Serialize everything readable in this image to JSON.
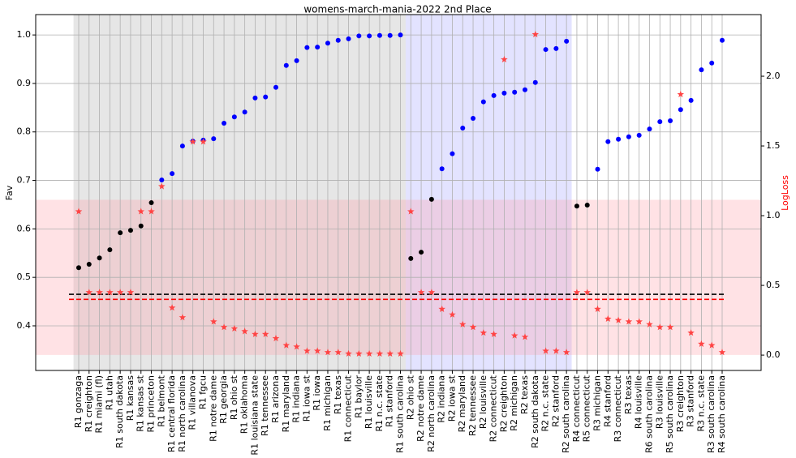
{
  "chart_data": {
    "type": "scatter",
    "title": "womens-march-mania-2022 2nd Place",
    "y_label": "Fav",
    "y2_label": "LogLoss",
    "y2_label_color": "#ff0000",
    "categories": [
      "R1 gonzaga",
      "R1 creighton",
      "R1 miami (fl)",
      "R1 utah",
      "R1 south dakota",
      "R1 kansas",
      "R1 kansas st",
      "R1 princeton",
      "R1 belmont",
      "R1 central florida",
      "R1 north carolina",
      "R1 villanova",
      "R1 fgcu",
      "R1 notre dame",
      "R1 georgia",
      "R1 ohio st",
      "R1 oklahoma",
      "R1 louisiana state",
      "R1 tennessee",
      "R1 arizona",
      "R1 maryland",
      "R1 indiana",
      "R1 iowa st",
      "R1 iowa",
      "R1 michigan",
      "R1 texas",
      "R1 connecticut",
      "R1 baylor",
      "R1 louisville",
      "R1 n.c. state",
      "R1 stanford",
      "R1 south carolina",
      "R2 ohio st",
      "R2 notre dame",
      "R2 north carolina",
      "R2 indiana",
      "R2 iowa st",
      "R2 maryland",
      "R2 tennessee",
      "R2 louisville",
      "R2 connecticut",
      "R2 creighton",
      "R2 michigan",
      "R2 texas",
      "R2 south dakota",
      "R2 n.c. state",
      "R2 stanford",
      "R2 south carolina",
      "R4 connecticut",
      "R5 connecticut",
      "R3 michigan",
      "R4 stanford",
      "R3 connecticut",
      "R3 texas",
      "R4 louisville",
      "R6 south carolina",
      "R3 louisville",
      "R5 south carolina",
      "R3 creighton",
      "R3 stanford",
      "R3 n.c. state",
      "R3 south carolina",
      "R4 south carolina"
    ],
    "series": [
      {
        "name": "Fav",
        "marker": "dot",
        "colors": [
          "#000000",
          "#000000",
          "#000000",
          "#000000",
          "#000000",
          "#000000",
          "#000000",
          "#000000",
          "#0000ff",
          "#0000ff",
          "#0000ff",
          "#0000ff",
          "#0000ff",
          "#0000ff",
          "#0000ff",
          "#0000ff",
          "#0000ff",
          "#0000ff",
          "#0000ff",
          "#0000ff",
          "#0000ff",
          "#0000ff",
          "#0000ff",
          "#0000ff",
          "#0000ff",
          "#0000ff",
          "#0000ff",
          "#0000ff",
          "#0000ff",
          "#0000ff",
          "#0000ff",
          "#0000ff",
          "#000000",
          "#000000",
          "#000000",
          "#0000ff",
          "#0000ff",
          "#0000ff",
          "#0000ff",
          "#0000ff",
          "#0000ff",
          "#0000ff",
          "#0000ff",
          "#0000ff",
          "#0000ff",
          "#0000ff",
          "#0000ff",
          "#0000ff",
          "#000000",
          "#000000",
          "#0000ff",
          "#0000ff",
          "#0000ff",
          "#0000ff",
          "#0000ff",
          "#0000ff",
          "#0000ff",
          "#0000ff",
          "#0000ff",
          "#0000ff",
          "#0000ff",
          "#0000ff",
          "#0000ff"
        ],
        "values": [
          0.52,
          0.527,
          0.54,
          0.557,
          0.592,
          0.597,
          0.606,
          0.654,
          0.701,
          0.714,
          0.771,
          0.781,
          0.783,
          0.786,
          0.818,
          0.831,
          0.841,
          0.87,
          0.872,
          0.892,
          0.937,
          0.947,
          0.974,
          0.975,
          0.983,
          0.989,
          0.992,
          0.998,
          0.998,
          0.999,
          0.999,
          1.0,
          0.539,
          0.552,
          0.661,
          0.724,
          0.755,
          0.808,
          0.828,
          0.862,
          0.875,
          0.88,
          0.882,
          0.887,
          0.902,
          0.97,
          0.972,
          0.987,
          0.647,
          0.649,
          0.723,
          0.78,
          0.785,
          0.79,
          0.793,
          0.806,
          0.821,
          0.823,
          0.846,
          0.865,
          0.928,
          0.942,
          0.989
        ]
      },
      {
        "name": "LogLoss",
        "marker": "star",
        "color": "#ff4444",
        "axis": "y2",
        "values": [
          1.03,
          0.45,
          0.45,
          0.45,
          0.45,
          0.45,
          1.03,
          1.03,
          1.21,
          0.34,
          0.27,
          1.53,
          1.53,
          0.24,
          0.2,
          0.19,
          0.17,
          0.15,
          0.15,
          0.12,
          0.07,
          0.06,
          0.03,
          0.03,
          0.02,
          0.02,
          0.01,
          0.01,
          0.01,
          0.01,
          0.01,
          0.01,
          1.03,
          0.45,
          0.45,
          0.33,
          0.29,
          0.22,
          0.2,
          0.16,
          0.15,
          2.12,
          0.14,
          0.13,
          2.3,
          0.03,
          0.03,
          0.02,
          0.45,
          0.45,
          0.33,
          0.26,
          0.25,
          0.24,
          0.24,
          0.22,
          0.2,
          0.2,
          1.87,
          0.16,
          0.08,
          0.07,
          0.02
        ]
      }
    ],
    "hlines": [
      {
        "value": 0.465,
        "color": "#000000"
      },
      {
        "value": 0.4,
        "color": "#ff0000",
        "axis": "y2"
      }
    ],
    "hspan": {
      "from": 0.34,
      "to": 0.66,
      "color": "rgba(255,150,160,0.28)"
    },
    "vspans": [
      {
        "from": 0,
        "to": 31,
        "color": "rgba(128,128,128,0.2)"
      },
      {
        "from": 32,
        "to": 47,
        "color": "rgba(90,90,255,0.17)"
      }
    ],
    "ylim": [
      0.308,
      1.042
    ],
    "yticks": [
      0.4,
      0.5,
      0.6,
      0.7,
      0.8,
      0.9,
      {
        "value": 1,
        "label": "1.0"
      }
    ],
    "y2lim": [
      -0.11,
      2.442
    ],
    "y2ticks": [
      {
        "value": 0,
        "label": "0.0"
      },
      0.5,
      {
        "value": 1,
        "label": "1.0"
      },
      1.5,
      {
        "value": 2,
        "label": "2.0"
      }
    ],
    "grid": true
  }
}
